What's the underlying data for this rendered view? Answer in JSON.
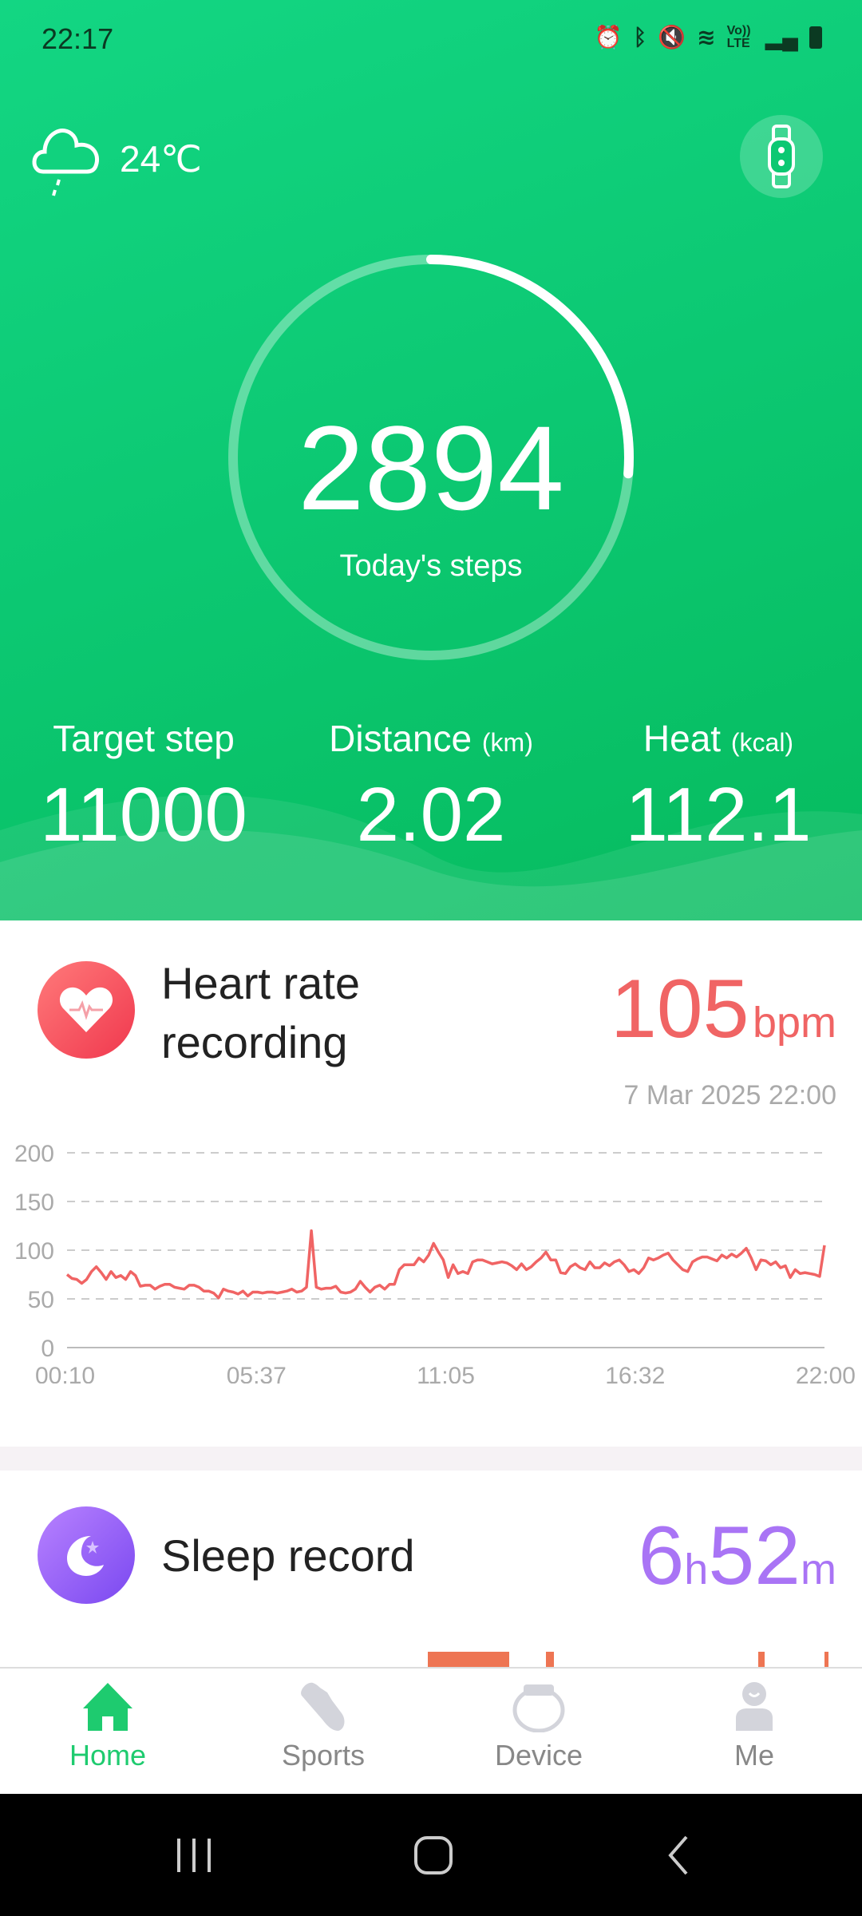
{
  "status_bar": {
    "time": "22:17",
    "icons": [
      "alarm-icon",
      "bluetooth-icon",
      "mute-icon",
      "wifi-6-icon",
      "volte-lte-icon",
      "signal-icon",
      "battery-icon"
    ],
    "volte_text": "Vo)) LTE"
  },
  "header": {
    "weather_icon": "cloud-rain-icon",
    "temperature": "24℃",
    "device_icon": "watch-band-icon"
  },
  "steps": {
    "value": "2894",
    "label": "Today's steps",
    "progress": 0.263
  },
  "stats": [
    {
      "label": "Target step",
      "unit": "",
      "value": "11000"
    },
    {
      "label": "Distance",
      "unit": "(km)",
      "value": "2.02"
    },
    {
      "label": "Heat",
      "unit": "(kcal)",
      "value": "112.1"
    }
  ],
  "heart": {
    "title_line1": "Heart rate",
    "title_line2": "recording",
    "value": "105",
    "unit": "bpm",
    "timestamp": "7 Mar 2025 22:00",
    "accent": "#f06464"
  },
  "chart_data": {
    "type": "line",
    "y_ticks": [
      "200",
      "150",
      "100",
      "50",
      "0"
    ],
    "ylim": [
      0,
      200
    ],
    "x_ticks": [
      "00:10",
      "05:37",
      "11:05",
      "16:32",
      "22:00"
    ],
    "x_range": [
      "00:10",
      "22:00"
    ],
    "grid": true,
    "color": "#f06464",
    "values": [
      75,
      71,
      70,
      66,
      70,
      78,
      83,
      77,
      70,
      78,
      72,
      74,
      70,
      78,
      74,
      63,
      64,
      64,
      60,
      63,
      65,
      65,
      62,
      61,
      60,
      64,
      64,
      62,
      58,
      58,
      56,
      51,
      60,
      58,
      57,
      55,
      58,
      53,
      57,
      57,
      56,
      57,
      57,
      56,
      57,
      58,
      60,
      57,
      58,
      62,
      120,
      62,
      60,
      61,
      61,
      63,
      57,
      56,
      57,
      60,
      68,
      62,
      57,
      62,
      64,
      60,
      65,
      65,
      80,
      85,
      85,
      85,
      92,
      88,
      95,
      107,
      98,
      90,
      72,
      85,
      76,
      78,
      76,
      88,
      90,
      90,
      88,
      86,
      87,
      88,
      87,
      84,
      80,
      86,
      80,
      83,
      88,
      92,
      98,
      90,
      90,
      77,
      76,
      83,
      86,
      82,
      80,
      88,
      82,
      82,
      87,
      84,
      88,
      90,
      85,
      78,
      80,
      76,
      82,
      92,
      90,
      92,
      95,
      97,
      90,
      85,
      80,
      78,
      88,
      91,
      93,
      93,
      91,
      89,
      95,
      92,
      96,
      93,
      97,
      102,
      92,
      80,
      90,
      89,
      85,
      88,
      82,
      84,
      72,
      80,
      76,
      77,
      76,
      75,
      73,
      105
    ]
  },
  "sleep": {
    "title": "Sleep record",
    "hours": "6",
    "h_unit": "h",
    "minutes": "52",
    "m_unit": "m",
    "accent": "#a974f5"
  },
  "nav": {
    "items": [
      {
        "label": "Home",
        "icon": "home-icon",
        "active": true
      },
      {
        "label": "Sports",
        "icon": "shoe-icon"
      },
      {
        "label": "Device",
        "icon": "band-icon"
      },
      {
        "label": "Me",
        "icon": "person-icon"
      }
    ]
  },
  "colors": {
    "brand": "#0cc872",
    "nav_active": "#1ecb6f"
  }
}
